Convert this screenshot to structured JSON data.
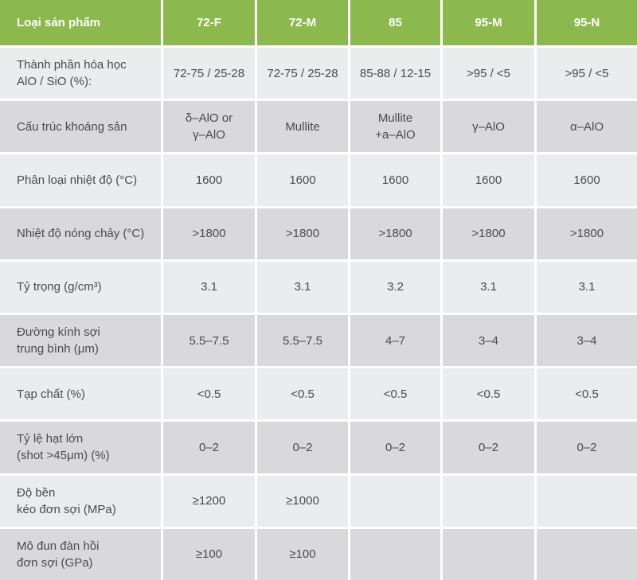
{
  "theme": {
    "header_bg": "#8cb94e",
    "header_text": "#ffffff",
    "row_light_bg": "#ebecee",
    "row_dark_bg": "#d9d9db",
    "cell_text": "#4b4b4d",
    "separator": "#ffffff"
  },
  "table": {
    "corner_label": "Loại sản phẩm",
    "columns": [
      "72-F",
      "72-M",
      "85",
      "95-M",
      "95-N"
    ],
    "rows": [
      {
        "label": "Thành phần hóa học\nAlO / SiO (%):",
        "values": [
          "72-75 / 25-28",
          "72-75 / 25-28",
          "85-88 / 12-15",
          ">95 / <5",
          ">95 / <5"
        ]
      },
      {
        "label": "Cấu trúc khoáng sản",
        "values": [
          "δ–AlO or\nγ–AlO",
          "Mullite",
          "Mullite\n+a–AlO",
          "γ–AlO",
          "α–AlO"
        ]
      },
      {
        "label": "Phân loại nhiệt độ (°C)",
        "values": [
          "1600",
          "1600",
          "1600",
          "1600",
          "1600"
        ]
      },
      {
        "label": "Nhiệt độ nóng chảy (°C)",
        "values": [
          ">1800",
          ">1800",
          ">1800",
          ">1800",
          ">1800"
        ]
      },
      {
        "label": "Tỷ trọng (g/cm³)",
        "values": [
          "3.1",
          "3.1",
          "3.2",
          "3.1",
          "3.1"
        ]
      },
      {
        "label": "Đường kính sợi\ntrung bình (μm)",
        "values": [
          "5.5–7.5",
          "5.5–7.5",
          "4–7",
          "3–4",
          "3–4"
        ]
      },
      {
        "label": "Tạp chất (%)",
        "values": [
          "<0.5",
          "<0.5",
          "<0.5",
          "<0.5",
          "<0.5"
        ]
      },
      {
        "label": "Tỷ lệ hạt lớn\n(shot >45μm) (%)",
        "values": [
          "0–2",
          "0–2",
          "0–2",
          "0–2",
          "0–2"
        ]
      },
      {
        "label": "Độ bền\nkéo đơn sợi (MPa)",
        "values": [
          "≥1200",
          "≥1000",
          "",
          "",
          ""
        ]
      },
      {
        "label": "Mô đun đàn hồi\nđơn sợi (GPa)",
        "values": [
          "≥100",
          "≥100",
          "",
          "",
          ""
        ]
      }
    ]
  }
}
